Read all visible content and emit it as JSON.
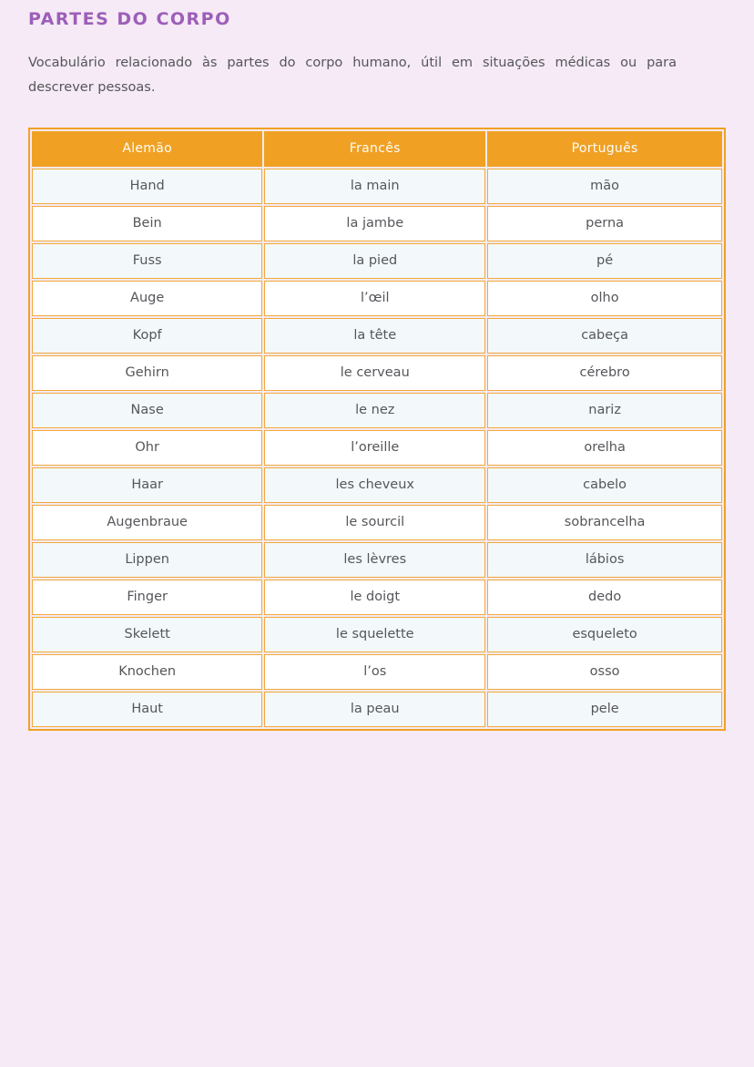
{
  "page": {
    "title": "PARTES DO CORPO",
    "description": "Vocabulário relacionado às partes do corpo humano, útil em situações médicas ou para descrever pessoas."
  },
  "colors": {
    "page_background": "#F5EAF6",
    "title_purple": "#9D5EB8",
    "header_orange": "#F0A124",
    "cell_border_orange": "#F1A93C",
    "row_tint": "#F3F9FA",
    "row_white": "#FFFFFF",
    "body_text": "#55565A",
    "header_text": "#FEFCF7"
  },
  "table": {
    "headers": [
      "Alemão",
      "Francês",
      "Português"
    ],
    "rows": [
      [
        "Hand",
        "la main",
        "mão"
      ],
      [
        "Bein",
        "la jambe",
        "perna"
      ],
      [
        "Fuss",
        "la pied",
        "pé"
      ],
      [
        "Auge",
        "l’œil",
        "olho"
      ],
      [
        "Kopf",
        "la tête",
        "cabeça"
      ],
      [
        "Gehirn",
        "le cerveau",
        "cérebro"
      ],
      [
        "Nase",
        "le nez",
        "nariz"
      ],
      [
        "Ohr",
        "l’oreille",
        "orelha"
      ],
      [
        "Haar",
        "les cheveux",
        "cabelo"
      ],
      [
        "Augenbraue",
        "le sourcil",
        "sobrancelha"
      ],
      [
        "Lippen",
        "les lèvres",
        "lábios"
      ],
      [
        "Finger",
        "le doigt",
        "dedo"
      ],
      [
        "Skelett",
        "le squelette",
        "esqueleto"
      ],
      [
        "Knochen",
        "l’os",
        "osso"
      ],
      [
        "Haut",
        "la peau",
        "pele"
      ]
    ]
  }
}
